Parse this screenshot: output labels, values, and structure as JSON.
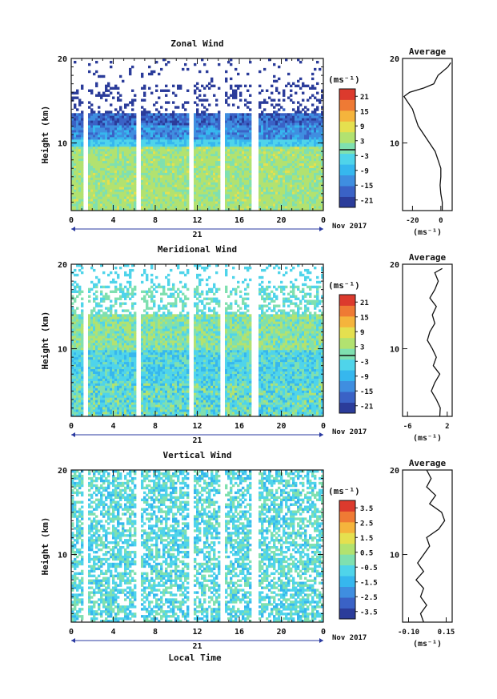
{
  "figure": {
    "date_label": "Nov 2017",
    "day_label": "21",
    "xlabel_bottom": "Local Time"
  },
  "colorscale": [
    "#2b3c9a",
    "#3a62c6",
    "#3f8ee0",
    "#36b7ee",
    "#4fd4ea",
    "#7fe0b0",
    "#b2e270",
    "#e5e04f",
    "#f5b43c",
    "#ef7a34",
    "#dc3a2d"
  ],
  "chart_data": [
    {
      "type": "heatmap",
      "title": "Zonal Wind",
      "xlabel": "",
      "ylabel": "Height (km)",
      "xticks": [
        "0",
        "4",
        "8",
        "12",
        "16",
        "20",
        "0"
      ],
      "xlim": [
        0,
        24
      ],
      "ylim": [
        2,
        20
      ],
      "yticks": [
        "10",
        "20"
      ],
      "colorbar": {
        "label": "(ms⁻¹)",
        "ticks": [
          "21",
          "15",
          "9",
          "3",
          "-3",
          "-9",
          "-15",
          "-21"
        ],
        "range": [
          -24,
          24
        ],
        "zero_line": true
      },
      "profile": {
        "title": "Average",
        "xticks": [
          "-20",
          "0"
        ],
        "xlim": [
          -27,
          8
        ],
        "xlabel": "(ms⁻¹)",
        "heights": [
          2,
          3,
          4,
          5,
          6,
          7,
          8,
          9,
          10,
          11,
          12,
          13,
          14,
          15,
          15.5,
          16,
          16.5,
          17,
          18,
          19,
          19.5
        ],
        "values": [
          1,
          1,
          0,
          -0.5,
          0,
          0,
          -2,
          -4,
          -8,
          -12,
          -16,
          -18,
          -20,
          -24,
          -26,
          -22,
          -12,
          -5,
          -2,
          5,
          7
        ]
      }
    },
    {
      "type": "heatmap",
      "title": "Meridional Wind",
      "xlabel": "",
      "ylabel": "Height (km)",
      "xticks": [
        "0",
        "4",
        "8",
        "12",
        "16",
        "20",
        "0"
      ],
      "xlim": [
        0,
        24
      ],
      "ylim": [
        2,
        20
      ],
      "yticks": [
        "10",
        "20"
      ],
      "colorbar": {
        "label": "(ms⁻¹)",
        "ticks": [
          "21",
          "15",
          "9",
          "3",
          "-3",
          "-9",
          "-15",
          "-21"
        ],
        "range": [
          -24,
          24
        ],
        "zero_line": true
      },
      "profile": {
        "title": "Average",
        "xticks": [
          "-6",
          "2"
        ],
        "xlim": [
          -7,
          3
        ],
        "xlabel": "(ms⁻¹)",
        "heights": [
          2,
          3,
          4,
          5,
          6,
          7,
          8,
          9,
          10,
          11,
          12,
          13,
          14,
          15,
          16,
          17,
          18,
          19,
          19.5
        ],
        "values": [
          0.5,
          0.6,
          -0.2,
          -1.2,
          -0.5,
          0.5,
          -0.8,
          -0.2,
          -1,
          -2,
          -1.5,
          -0.5,
          -1,
          -0.2,
          -1.5,
          -0.5,
          0.2,
          -0.5,
          1
        ]
      }
    },
    {
      "type": "heatmap",
      "title": "Vertical Wind",
      "xlabel": "Local Time",
      "ylabel": "Height (km)",
      "xticks": [
        "0",
        "4",
        "8",
        "12",
        "16",
        "20",
        "0"
      ],
      "xlim": [
        0,
        24
      ],
      "ylim": [
        2,
        20
      ],
      "yticks": [
        "10",
        "20"
      ],
      "colorbar": {
        "label": "(ms⁻¹)",
        "ticks": [
          "3.5",
          "2.5",
          "1.5",
          "0.5",
          "-0.5",
          "-1.5",
          "-2.5",
          "-3.5"
        ],
        "range": [
          -4,
          4
        ],
        "zero_line": false
      },
      "profile": {
        "title": "Average",
        "xticks": [
          "-0.10",
          "0.15"
        ],
        "xlim": [
          -0.14,
          0.19
        ],
        "xlabel": "(ms⁻¹)",
        "heights": [
          2,
          3,
          4,
          5,
          6,
          7,
          8,
          9,
          10,
          11,
          12,
          13,
          14,
          15,
          16,
          17,
          18,
          19,
          20
        ],
        "values": [
          0,
          -0.02,
          0.02,
          -0.02,
          0,
          -0.05,
          0,
          -0.04,
          0,
          0.04,
          0.02,
          0.1,
          0.14,
          0.12,
          0.04,
          0.08,
          0.02,
          0.05,
          0.02
        ]
      }
    }
  ]
}
